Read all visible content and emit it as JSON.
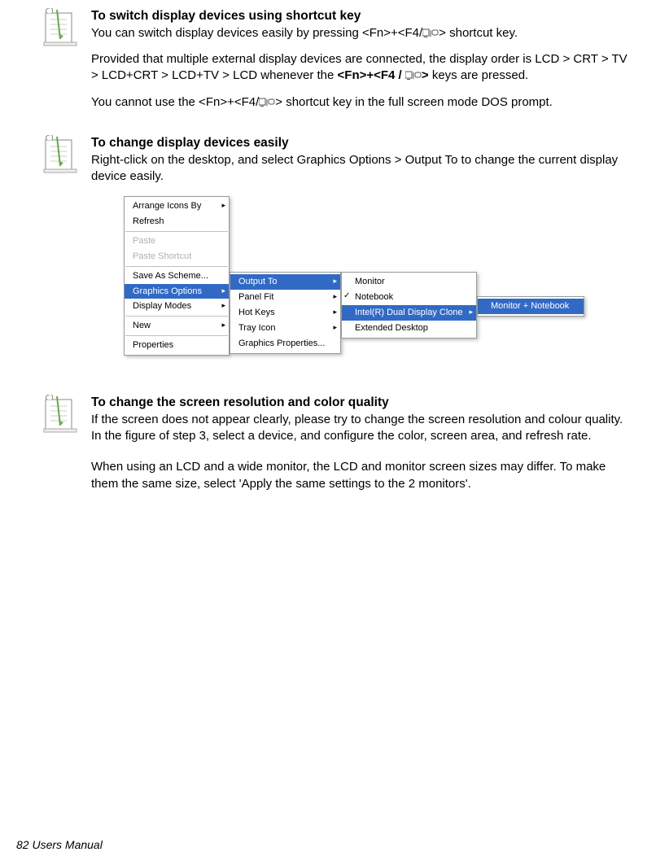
{
  "section1": {
    "heading": "To switch display devices using shortcut key",
    "p1a": "You can switch display devices easily by pressing <Fn>+<F4/",
    "p1b": "> shortcut key.",
    "p2a": "Provided that multiple external display devices are connected, the display order is LCD > CRT > TV > LCD+CRT > LCD+TV > LCD whenever the ",
    "p2b": "<Fn>+<F4 / ",
    "p2c": ">",
    "p2d": " keys are pressed.",
    "p3a": "You cannot use the <Fn>+<F4/",
    "p3b": "> shortcut key in the full screen mode DOS prompt."
  },
  "section2": {
    "heading": "To change display devices easily",
    "p1": "Right-click on the desktop, and select Graphics Options > Output To to change the current display device easily."
  },
  "menus": {
    "m1": [
      {
        "label": "Arrange Icons By",
        "sub": true
      },
      {
        "label": "Refresh"
      },
      {
        "sep": true
      },
      {
        "label": "Paste",
        "disabled": true
      },
      {
        "label": "Paste Shortcut",
        "disabled": true
      },
      {
        "sep": true
      },
      {
        "label": "Save As Scheme..."
      },
      {
        "label": "Graphics Options",
        "sub": true,
        "selected": true
      },
      {
        "label": "Display Modes",
        "sub": true
      },
      {
        "sep": true
      },
      {
        "label": "New",
        "sub": true
      },
      {
        "sep": true
      },
      {
        "label": "Properties"
      }
    ],
    "m2": [
      {
        "label": "Output To",
        "sub": true,
        "selected": true
      },
      {
        "label": "Panel Fit",
        "sub": true
      },
      {
        "label": "Hot Keys",
        "sub": true
      },
      {
        "label": "Tray Icon",
        "sub": true
      },
      {
        "label": "Graphics Properties..."
      }
    ],
    "m3": [
      {
        "label": "Monitor",
        "checkable": true
      },
      {
        "label": "Notebook",
        "checkable": true,
        "checked": true
      },
      {
        "label": "Intel(R) Dual Display Clone",
        "sub": true,
        "selected": true,
        "checkable": true
      },
      {
        "label": "Extended Desktop",
        "checkable": true
      }
    ],
    "m4": [
      {
        "label": "Monitor + Notebook",
        "selected": true,
        "checkable": true
      }
    ]
  },
  "section3": {
    "heading": "To change the screen resolution and color quality",
    "p1": "If the screen does not appear clearly, please try to change the screen resolution and colour quality. In the figure of step 3, select a device, and configure the color, screen area, and refresh rate.",
    "p2": "When using an LCD and a wide monitor, the LCD and monitor screen sizes may differ. To make them the same size, select 'Apply the same settings to the 2 monitors'."
  },
  "footer": "82  Users Manual",
  "colors": {
    "highlight_bg": "#316ac5",
    "highlight_fg": "#ffffff",
    "disabled": "#b0b0b0",
    "border": "#9a9a9a"
  }
}
